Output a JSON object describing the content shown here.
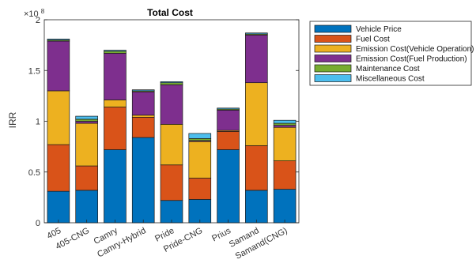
{
  "chart_data": {
    "type": "bar",
    "stacked": true,
    "title": "Total Cost",
    "xlabel": "",
    "ylabel": "IRR",
    "y_exponent_label": "×10",
    "y_exponent_power": "8",
    "ylim": [
      0,
      2
    ],
    "yticks": [
      0,
      0.5,
      1,
      1.5,
      2
    ],
    "ytick_labels": [
      "0",
      "0.5",
      "1",
      "1.5",
      "2"
    ],
    "grid": false,
    "legend_position": "outside-top-right",
    "categories": [
      "405",
      "405-CNG",
      "Camry",
      "Camry-Hybrid",
      "Pride",
      "Pride-CNG",
      "Prius",
      "Samand",
      "Samand(CNG)"
    ],
    "series": [
      {
        "name": "Vehicle Price",
        "color": "#0072BD",
        "values": [
          0.31,
          0.32,
          0.72,
          0.84,
          0.22,
          0.23,
          0.72,
          0.32,
          0.33
        ]
      },
      {
        "name": "Fuel Cost",
        "color": "#D95319",
        "values": [
          0.46,
          0.24,
          0.42,
          0.2,
          0.35,
          0.21,
          0.18,
          0.44,
          0.28
        ]
      },
      {
        "name": "Emission Cost(Vehicle Operation)",
        "color": "#EDB120",
        "values": [
          0.53,
          0.42,
          0.07,
          0.02,
          0.4,
          0.36,
          0.01,
          0.62,
          0.33
        ]
      },
      {
        "name": "Emission Cost(Fuel Production)",
        "color": "#7E2F8E",
        "values": [
          0.49,
          0.02,
          0.46,
          0.23,
          0.39,
          0.01,
          0.2,
          0.47,
          0.02
        ]
      },
      {
        "name": "Maintenance Cost",
        "color": "#77AC30",
        "values": [
          0.01,
          0.02,
          0.02,
          0.01,
          0.02,
          0.02,
          0.01,
          0.01,
          0.02
        ]
      },
      {
        "name": "Miscellaneous Cost",
        "color": "#4DBEEE",
        "values": [
          0.01,
          0.03,
          0.01,
          0.01,
          0.01,
          0.05,
          0.01,
          0.01,
          0.03
        ]
      }
    ]
  }
}
